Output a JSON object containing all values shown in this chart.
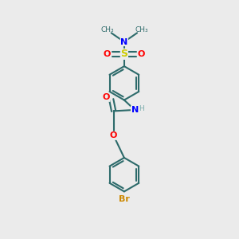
{
  "bg_color": "#ebebeb",
  "atom_colors": {
    "C": "#2d6b6b",
    "H": "#7aacac",
    "N": "#0000ff",
    "O": "#ff0000",
    "S": "#cccc00",
    "Br": "#cc8800"
  },
  "bond_color": "#2d6b6b",
  "figsize": [
    3.0,
    3.0
  ],
  "dpi": 100
}
